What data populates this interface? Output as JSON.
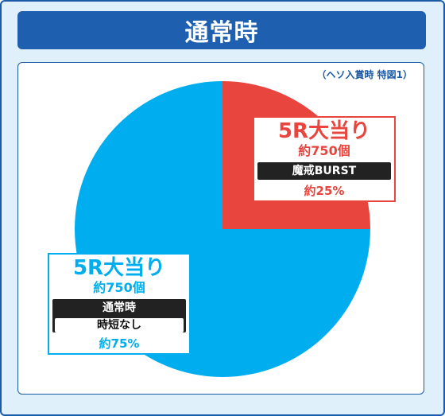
{
  "header": {
    "title": "通常時"
  },
  "note": "（ヘソ入賞時 特図1）",
  "colors": {
    "red": "#e8453f",
    "blue": "#00aeef",
    "navy": "#1e5fb0",
    "bar": "#222222"
  },
  "chart_data": {
    "type": "pie",
    "title": "通常時",
    "slices": [
      {
        "name": "5R大当り",
        "value": 25,
        "label": "約25%",
        "sub": "約750個",
        "tag": "魔戒BURST",
        "color": "#e8453f"
      },
      {
        "name": "5R大当り",
        "value": 75,
        "label": "約75%",
        "sub": "約750個",
        "tag": "通常時",
        "tag2": "時短なし",
        "color": "#00aeef"
      }
    ]
  }
}
